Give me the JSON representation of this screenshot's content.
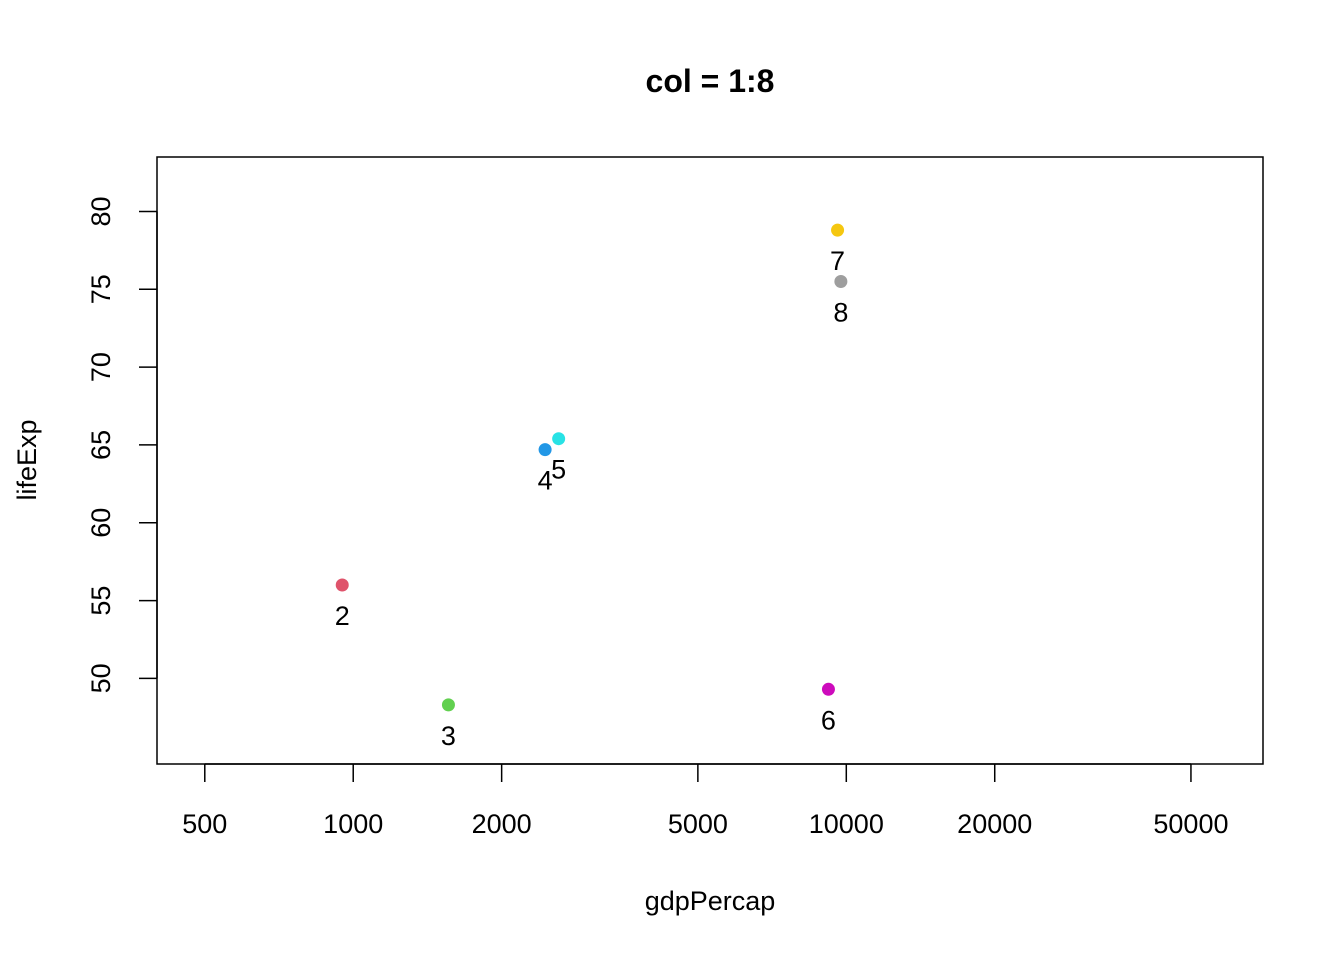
{
  "chart_data": {
    "type": "scatter",
    "title": "col = 1:8",
    "xlabel": "gdpPercap",
    "ylabel": "lifeExp",
    "x_scale": "log",
    "xlim": [
      400,
      70000
    ],
    "ylim": [
      44.5,
      83.5
    ],
    "x_ticks": [
      500,
      1000,
      2000,
      5000,
      10000,
      20000,
      50000
    ],
    "y_ticks": [
      50,
      55,
      60,
      65,
      70,
      75,
      80
    ],
    "grid": false,
    "points": [
      {
        "label": "2",
        "x": 950,
        "y": 56.0,
        "color": "#DF536B",
        "label_pos": "below"
      },
      {
        "label": "3",
        "x": 1560,
        "y": 48.3,
        "color": "#61D04F",
        "label_pos": "below"
      },
      {
        "label": "4",
        "x": 2450,
        "y": 64.7,
        "color": "#2297E6",
        "label_pos": "below"
      },
      {
        "label": "5",
        "x": 2610,
        "y": 65.4,
        "color": "#28E2E5",
        "label_pos": "below"
      },
      {
        "label": "6",
        "x": 9200,
        "y": 49.3,
        "color": "#CD0BBC",
        "label_pos": "below"
      },
      {
        "label": "7",
        "x": 9600,
        "y": 78.8,
        "color": "#F5C710",
        "label_pos": "below"
      },
      {
        "label": "8",
        "x": 9750,
        "y": 75.5,
        "color": "#9E9E9E",
        "label_pos": "below"
      }
    ]
  }
}
